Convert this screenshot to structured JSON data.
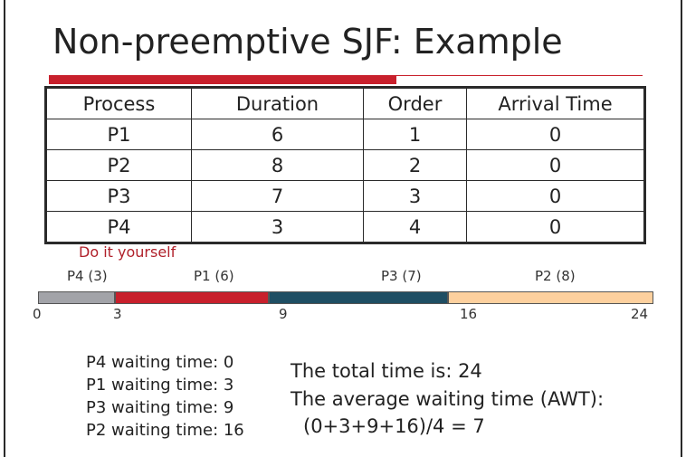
{
  "title": "Non-preemptive SJF: Example",
  "table": {
    "headers": [
      "Process",
      "Duration",
      "Order",
      "Arrival Time"
    ],
    "rows": [
      [
        "P1",
        "6",
        "1",
        "0"
      ],
      [
        "P2",
        "8",
        "2",
        "0"
      ],
      [
        "P3",
        "7",
        "3",
        "0"
      ],
      [
        "P4",
        "3",
        "4",
        "0"
      ]
    ]
  },
  "note": "Do it yourself",
  "gantt": {
    "total": 24,
    "segments": [
      {
        "label": "P4 (3)",
        "start": 0,
        "end": 3,
        "color": "#a2a3a8"
      },
      {
        "label": "P1 (6)",
        "start": 3,
        "end": 9,
        "color": "#c8202c"
      },
      {
        "label": "P3 (7)",
        "start": 9,
        "end": 16,
        "color": "#1f4e63"
      },
      {
        "label": "P2 (8)",
        "start": 16,
        "end": 24,
        "color": "#fdd09e"
      }
    ],
    "ticks": [
      "0",
      "3",
      "9",
      "16",
      "24"
    ]
  },
  "waiting": [
    "P4 waiting time: 0",
    "P1 waiting time: 3",
    "P3 waiting time: 9",
    "P2 waiting time: 16"
  ],
  "summary": {
    "total": "The total time is: 24",
    "awt_label": "The average waiting time (AWT):",
    "awt_formula": "(0+3+9+16)/4 = 7"
  }
}
